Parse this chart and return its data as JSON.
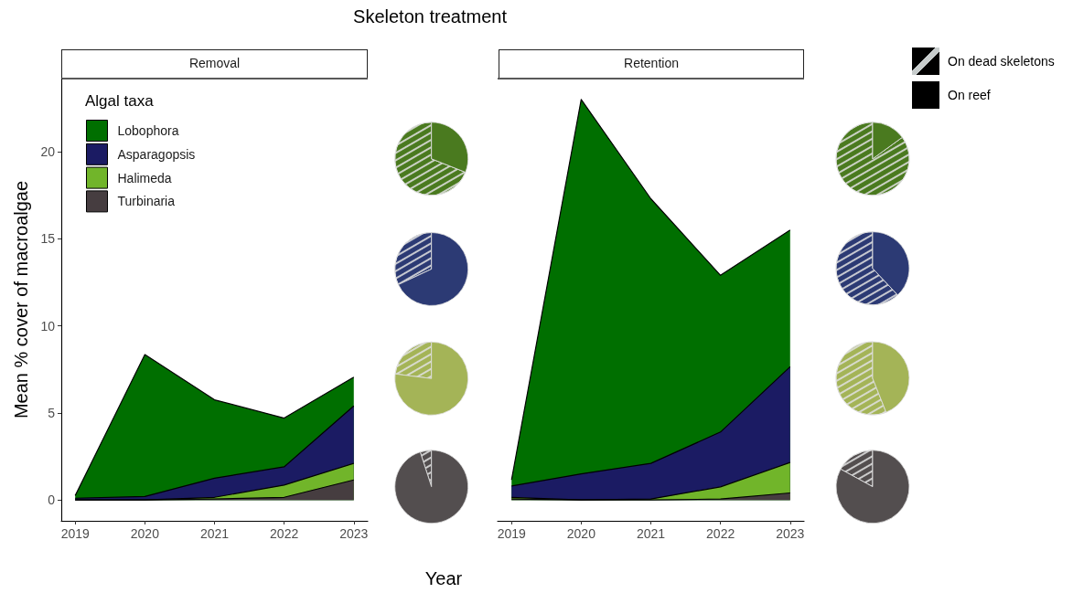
{
  "chart_data": [
    {
      "type": "other",
      "title": "Skeleton treatment"
    },
    {
      "type": "area",
      "title": "Removal",
      "xlabel": "Year",
      "ylabel": "Mean % cover of macroalgae",
      "legend_title": "Algal taxa",
      "legend": "top left",
      "stacked": true,
      "x": [
        2019,
        2020,
        2021,
        2022,
        2023
      ],
      "xlim": [
        2018.8,
        2023.2
      ],
      "xticks": [
        2019,
        2020,
        2021,
        2022,
        2023
      ],
      "ylim": [
        -1.2,
        24.2
      ],
      "yticks": [
        0,
        5,
        10,
        15,
        20
      ],
      "series": [
        {
          "name": "Turbinaria",
          "color": "#463d40",
          "values": [
            0,
            0,
            0.05,
            0.15,
            1.15
          ]
        },
        {
          "name": "Halimeda",
          "color": "#71b52a",
          "values": [
            0,
            0,
            0.1,
            0.7,
            0.95
          ]
        },
        {
          "name": "Asparagopsis",
          "color": "#1b1b63",
          "values": [
            0.1,
            0.2,
            1.1,
            1.05,
            3.3
          ]
        },
        {
          "name": "Lobophora",
          "color": "#006f00",
          "values": [
            0.15,
            8.15,
            4.5,
            2.8,
            1.65
          ]
        }
      ]
    },
    {
      "type": "pie",
      "categories": [
        null,
        null
      ],
      "series": [
        {
          "color": "#4a7a1f",
          "values": [
            69,
            31
          ]
        },
        {
          "color": "#2c3a74",
          "values": [
            32,
            68
          ]
        },
        {
          "color": "#a4b457",
          "values": [
            23,
            77
          ]
        },
        {
          "color": "#534e4f",
          "values": [
            5,
            95
          ]
        }
      ]
    },
    {
      "type": "area",
      "title": "Retention",
      "stacked": true,
      "tick_labels": "x",
      "x": [
        2019,
        2020,
        2021,
        2022,
        2023
      ],
      "xlim": [
        2018.8,
        2023.2
      ],
      "xticks": [
        2019,
        2020,
        2021,
        2022,
        2023
      ],
      "ylim": [
        -1.2,
        24.2
      ],
      "yticks": [
        0,
        5,
        10,
        15,
        20
      ],
      "series": [
        {
          "color": "#463d40",
          "values": [
            0.05,
            0,
            0,
            0.05,
            0.4
          ]
        },
        {
          "color": "#71b52a",
          "values": [
            0.1,
            0,
            0.05,
            0.7,
            1.75
          ]
        },
        {
          "color": "#1b1b63",
          "values": [
            0.65,
            1.5,
            2.05,
            3.15,
            5.5
          ]
        },
        {
          "color": "#006f00",
          "values": [
            0.35,
            21.5,
            15.2,
            9.0,
            7.85
          ]
        }
      ]
    },
    {
      "type": "pie",
      "categories": [
        null,
        null
      ],
      "series": [
        {
          "color": "#4a7a1f",
          "values": [
            85,
            15
          ]
        },
        {
          "color": "#2c3a74",
          "values": [
            62,
            38
          ]
        },
        {
          "color": "#a4b457",
          "values": [
            56,
            44
          ]
        },
        {
          "color": "#534e4f",
          "values": [
            17,
            83
          ]
        }
      ]
    },
    {
      "type": "other",
      "annotations": [
        "On dead skeletons",
        "On reef"
      ]
    }
  ]
}
